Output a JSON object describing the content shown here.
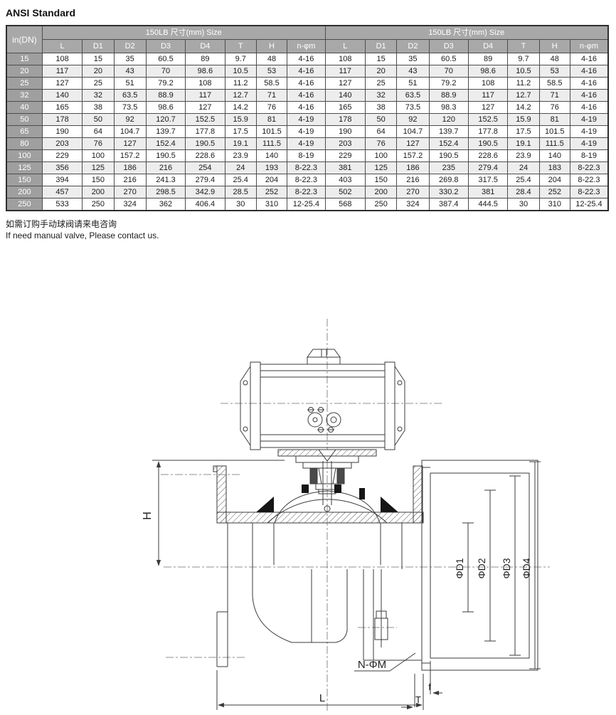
{
  "page": {
    "title": "ANSI Standard"
  },
  "table": {
    "corner_header": "in(DN)",
    "group_headers": [
      "150LB 尺寸(mm) Size",
      "150LB 尺寸(mm) Size"
    ],
    "sub_headers": [
      "L",
      "D1",
      "D2",
      "D3",
      "D4",
      "T",
      "H",
      "n-φm"
    ],
    "rows": [
      {
        "dn": "15",
        "left": [
          "108",
          "15",
          "35",
          "60.5",
          "89",
          "9.7",
          "48",
          "4-16"
        ],
        "right": [
          "108",
          "15",
          "35",
          "60.5",
          "89",
          "9.7",
          "48",
          "4-16"
        ]
      },
      {
        "dn": "20",
        "left": [
          "117",
          "20",
          "43",
          "70",
          "98.6",
          "10.5",
          "53",
          "4-16"
        ],
        "right": [
          "117",
          "20",
          "43",
          "70",
          "98.6",
          "10.5",
          "53",
          "4-16"
        ]
      },
      {
        "dn": "25",
        "left": [
          "127",
          "25",
          "51",
          "79.2",
          "108",
          "11.2",
          "58.5",
          "4-16"
        ],
        "right": [
          "127",
          "25",
          "51",
          "79.2",
          "108",
          "11.2",
          "58.5",
          "4-16"
        ]
      },
      {
        "dn": "32",
        "left": [
          "140",
          "32",
          "63.5",
          "88.9",
          "117",
          "12.7",
          "71",
          "4-16"
        ],
        "right": [
          "140",
          "32",
          "63.5",
          "88.9",
          "117",
          "12.7",
          "71",
          "4-16"
        ]
      },
      {
        "dn": "40",
        "left": [
          "165",
          "38",
          "73.5",
          "98.6",
          "127",
          "14.2",
          "76",
          "4-16"
        ],
        "right": [
          "165",
          "38",
          "73.5",
          "98.3",
          "127",
          "14.2",
          "76",
          "4-16"
        ]
      },
      {
        "dn": "50",
        "left": [
          "178",
          "50",
          "92",
          "120.7",
          "152.5",
          "15.9",
          "81",
          "4-19"
        ],
        "right": [
          "178",
          "50",
          "92",
          "120",
          "152.5",
          "15.9",
          "81",
          "4-19"
        ]
      },
      {
        "dn": "65",
        "left": [
          "190",
          "64",
          "104.7",
          "139.7",
          "177.8",
          "17.5",
          "101.5",
          "4-19"
        ],
        "right": [
          "190",
          "64",
          "104.7",
          "139.7",
          "177.8",
          "17.5",
          "101.5",
          "4-19"
        ]
      },
      {
        "dn": "80",
        "left": [
          "203",
          "76",
          "127",
          "152.4",
          "190.5",
          "19.1",
          "111.5",
          "4-19"
        ],
        "right": [
          "203",
          "76",
          "127",
          "152.4",
          "190.5",
          "19.1",
          "111.5",
          "4-19"
        ]
      },
      {
        "dn": "100",
        "left": [
          "229",
          "100",
          "157.2",
          "190.5",
          "228.6",
          "23.9",
          "140",
          "8-19"
        ],
        "right": [
          "229",
          "100",
          "157.2",
          "190.5",
          "228.6",
          "23.9",
          "140",
          "8-19"
        ]
      },
      {
        "dn": "125",
        "left": [
          "356",
          "125",
          "186",
          "216",
          "254",
          "24",
          "193",
          "8-22.3"
        ],
        "right": [
          "381",
          "125",
          "186",
          "235",
          "279.4",
          "24",
          "183",
          "8-22.3"
        ]
      },
      {
        "dn": "150",
        "left": [
          "394",
          "150",
          "216",
          "241.3",
          "279.4",
          "25.4",
          "204",
          "8-22.3"
        ],
        "right": [
          "403",
          "150",
          "216",
          "269.8",
          "317.5",
          "25.4",
          "204",
          "8-22.3"
        ]
      },
      {
        "dn": "200",
        "left": [
          "457",
          "200",
          "270",
          "298.5",
          "342.9",
          "28.5",
          "252",
          "8-22.3"
        ],
        "right": [
          "502",
          "200",
          "270",
          "330.2",
          "381",
          "28.4",
          "252",
          "8-22.3"
        ]
      },
      {
        "dn": "250",
        "left": [
          "533",
          "250",
          "324",
          "362",
          "406.4",
          "30",
          "310",
          "12-25.4"
        ],
        "right": [
          "568",
          "250",
          "324",
          "387.4",
          "444.5",
          "30",
          "310",
          "12-25.4"
        ]
      }
    ]
  },
  "notes": {
    "cn": "如需订购手动球阀请来电咨询",
    "en": "If need manual valve, Please contact us."
  },
  "drawing": {
    "labels": {
      "h": "H",
      "d1": "ΦD1",
      "d2": "ΦD2",
      "d3": "ΦD3",
      "d4": "ΦD4",
      "n_phi_m": "N-ΦM",
      "l": "L",
      "t": "T",
      "f": "f"
    }
  },
  "colors": {
    "header_bg": "#a8a8a8",
    "row_label_bg": "#9f9f9f",
    "alt_row_bg": "#ededed",
    "table_border": "#4d4d4d",
    "line": "#3b3b3b"
  }
}
